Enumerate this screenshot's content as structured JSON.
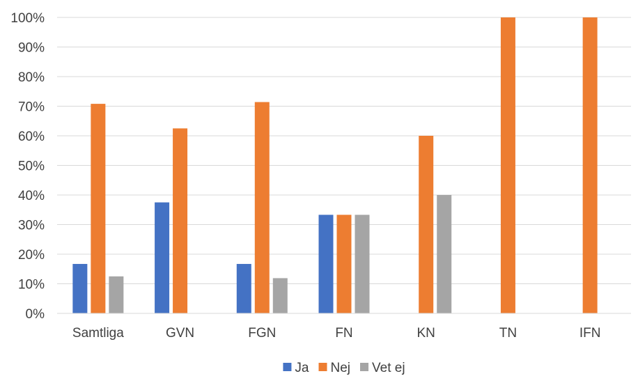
{
  "chart_data": {
    "type": "bar",
    "categories": [
      "Samtliga",
      "GVN",
      "FGN",
      "FN",
      "KN",
      "TN",
      "IFN"
    ],
    "series": [
      {
        "name": "Ja",
        "color": "#4472C4",
        "values": [
          16.7,
          37.5,
          16.7,
          33.3,
          0,
          0,
          0
        ]
      },
      {
        "name": "Nej",
        "color": "#ED7D31",
        "values": [
          70.8,
          62.5,
          71.4,
          33.3,
          60,
          100,
          100
        ]
      },
      {
        "name": "Vet ej",
        "color": "#A5A5A5",
        "values": [
          12.5,
          0,
          11.9,
          33.3,
          40,
          0,
          0
        ]
      }
    ],
    "y_ticks": [
      "0%",
      "10%",
      "20%",
      "30%",
      "40%",
      "50%",
      "60%",
      "70%",
      "80%",
      "90%",
      "100%"
    ],
    "ylim": [
      0,
      100
    ],
    "grid": true,
    "legend_position": "bottom-center"
  }
}
